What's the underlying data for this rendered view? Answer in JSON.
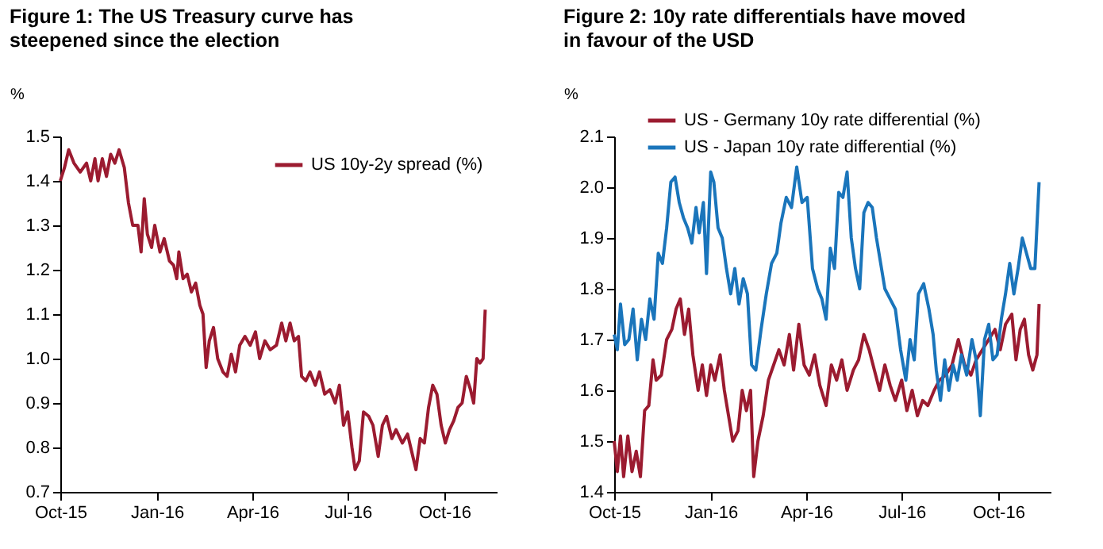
{
  "chart_data": [
    {
      "type": "line",
      "title": "Figure 1: The US Treasury curve has steepened since the election",
      "ylabel": "%",
      "legend": "top right",
      "xlim": [
        "2015-10-01",
        "2016-11-20"
      ],
      "ylim": [
        0.7,
        1.5
      ],
      "xticks": [
        {
          "value": "2015-10-01",
          "label": "Oct-15"
        },
        {
          "value": "2016-01-01",
          "label": "Jan-16"
        },
        {
          "value": "2016-04-01",
          "label": "Apr-16"
        },
        {
          "value": "2016-07-01",
          "label": "Jul-16"
        },
        {
          "value": "2016-10-01",
          "label": "Oct-16"
        }
      ],
      "yticks": [
        {
          "value": 0.7,
          "label": "0.7"
        },
        {
          "value": 0.8,
          "label": "0.8"
        },
        {
          "value": 0.9,
          "label": "0.9"
        },
        {
          "value": 1.0,
          "label": "1.0"
        },
        {
          "value": 1.1,
          "label": "1.1"
        },
        {
          "value": 1.2,
          "label": "1.2"
        },
        {
          "value": 1.3,
          "label": "1.3"
        },
        {
          "value": 1.4,
          "label": "1.4"
        },
        {
          "value": 1.5,
          "label": "1.5"
        }
      ],
      "series": [
        {
          "name": "US 10y-2y spread (%)",
          "color": "#9b1b30",
          "x": [
            "2015-10-01",
            "2015-10-05",
            "2015-10-09",
            "2015-10-14",
            "2015-10-20",
            "2015-10-26",
            "2015-10-30",
            "2015-11-03",
            "2015-11-06",
            "2015-11-10",
            "2015-11-14",
            "2015-11-18",
            "2015-11-22",
            "2015-11-26",
            "2015-12-01",
            "2015-12-05",
            "2015-12-09",
            "2015-12-14",
            "2015-12-17",
            "2015-12-20",
            "2015-12-23",
            "2015-12-27",
            "2015-12-30",
            "2016-01-04",
            "2016-01-08",
            "2016-01-13",
            "2016-01-17",
            "2016-01-20",
            "2016-01-22",
            "2016-01-26",
            "2016-01-30",
            "2016-02-03",
            "2016-02-07",
            "2016-02-11",
            "2016-02-14",
            "2016-02-17",
            "2016-02-20",
            "2016-02-24",
            "2016-02-28",
            "2016-03-04",
            "2016-03-08",
            "2016-03-12",
            "2016-03-16",
            "2016-03-20",
            "2016-03-25",
            "2016-03-30",
            "2016-04-04",
            "2016-04-08",
            "2016-04-13",
            "2016-04-18",
            "2016-04-24",
            "2016-04-29",
            "2016-05-03",
            "2016-05-07",
            "2016-05-11",
            "2016-05-15",
            "2016-05-18",
            "2016-05-22",
            "2016-05-26",
            "2016-05-31",
            "2016-06-04",
            "2016-06-09",
            "2016-06-14",
            "2016-06-19",
            "2016-06-23",
            "2016-06-27",
            "2016-07-01",
            "2016-07-05",
            "2016-07-08",
            "2016-07-12",
            "2016-07-16",
            "2016-07-21",
            "2016-07-25",
            "2016-07-30",
            "2016-08-03",
            "2016-08-07",
            "2016-08-12",
            "2016-08-16",
            "2016-08-22",
            "2016-08-27",
            "2016-09-01",
            "2016-09-04",
            "2016-09-08",
            "2016-09-12",
            "2016-09-16",
            "2016-09-20",
            "2016-09-24",
            "2016-09-28",
            "2016-10-02",
            "2016-10-06",
            "2016-10-10",
            "2016-10-14",
            "2016-10-18",
            "2016-10-22",
            "2016-10-26",
            "2016-10-29",
            "2016-11-01",
            "2016-11-04",
            "2016-11-07",
            "2016-11-09"
          ],
          "values": [
            1.4,
            1.43,
            1.47,
            1.44,
            1.42,
            1.44,
            1.4,
            1.45,
            1.4,
            1.45,
            1.41,
            1.46,
            1.44,
            1.47,
            1.43,
            1.35,
            1.3,
            1.3,
            1.24,
            1.36,
            1.28,
            1.25,
            1.3,
            1.24,
            1.27,
            1.22,
            1.21,
            1.18,
            1.24,
            1.18,
            1.19,
            1.15,
            1.17,
            1.12,
            1.1,
            0.98,
            1.04,
            1.07,
            1.0,
            0.97,
            0.96,
            1.01,
            0.97,
            1.03,
            1.05,
            1.03,
            1.06,
            1.0,
            1.04,
            1.02,
            1.03,
            1.08,
            1.04,
            1.08,
            1.04,
            1.05,
            0.96,
            0.95,
            0.97,
            0.94,
            0.97,
            0.92,
            0.93,
            0.9,
            0.94,
            0.85,
            0.88,
            0.8,
            0.75,
            0.77,
            0.88,
            0.87,
            0.85,
            0.78,
            0.85,
            0.87,
            0.82,
            0.84,
            0.81,
            0.83,
            0.78,
            0.75,
            0.82,
            0.81,
            0.89,
            0.94,
            0.92,
            0.85,
            0.81,
            0.84,
            0.86,
            0.89,
            0.9,
            0.96,
            0.93,
            0.9,
            1.0,
            0.99,
            1.0,
            1.11
          ]
        }
      ]
    },
    {
      "type": "line",
      "title": "Figure 2: 10y rate differentials have moved in favour of the USD",
      "ylabel": "%",
      "legend": "top",
      "xlim": [
        "2015-10-01",
        "2016-11-20"
      ],
      "ylim": [
        1.4,
        2.1
      ],
      "xticks": [
        {
          "value": "2015-10-01",
          "label": "Oct-15"
        },
        {
          "value": "2016-01-01",
          "label": "Jan-16"
        },
        {
          "value": "2016-04-01",
          "label": "Apr-16"
        },
        {
          "value": "2016-07-01",
          "label": "Jul-16"
        },
        {
          "value": "2016-10-01",
          "label": "Oct-16"
        }
      ],
      "yticks": [
        {
          "value": 1.4,
          "label": "1.4"
        },
        {
          "value": 1.5,
          "label": "1.5"
        },
        {
          "value": 1.6,
          "label": "1.6"
        },
        {
          "value": 1.7,
          "label": "1.7"
        },
        {
          "value": 1.8,
          "label": "1.8"
        },
        {
          "value": 1.9,
          "label": "1.9"
        },
        {
          "value": 2.0,
          "label": "2.0"
        },
        {
          "value": 2.1,
          "label": "2.1"
        }
      ],
      "series": [
        {
          "name": "US - Germany 10y rate differential (%)",
          "color": "#9b1b30",
          "x": [
            "2015-10-01",
            "2015-10-04",
            "2015-10-07",
            "2015-10-10",
            "2015-10-14",
            "2015-10-18",
            "2015-10-22",
            "2015-10-26",
            "2015-10-30",
            "2015-11-03",
            "2015-11-07",
            "2015-11-10",
            "2015-11-15",
            "2015-11-20",
            "2015-11-25",
            "2015-11-29",
            "2015-12-03",
            "2015-12-07",
            "2015-12-11",
            "2015-12-15",
            "2015-12-20",
            "2015-12-24",
            "2015-12-28",
            "2016-01-01",
            "2016-01-05",
            "2016-01-10",
            "2016-01-14",
            "2016-01-18",
            "2016-01-22",
            "2016-01-27",
            "2016-01-31",
            "2016-02-04",
            "2016-02-08",
            "2016-02-11",
            "2016-02-15",
            "2016-02-20",
            "2016-02-25",
            "2016-03-01",
            "2016-03-06",
            "2016-03-11",
            "2016-03-16",
            "2016-03-20",
            "2016-03-25",
            "2016-03-30",
            "2016-04-04",
            "2016-04-09",
            "2016-04-14",
            "2016-04-20",
            "2016-04-25",
            "2016-04-30",
            "2016-05-05",
            "2016-05-10",
            "2016-05-16",
            "2016-05-21",
            "2016-05-26",
            "2016-05-31",
            "2016-06-05",
            "2016-06-10",
            "2016-06-15",
            "2016-06-20",
            "2016-06-25",
            "2016-07-01",
            "2016-07-06",
            "2016-07-11",
            "2016-07-16",
            "2016-07-21",
            "2016-07-26",
            "2016-08-01",
            "2016-08-06",
            "2016-08-12",
            "2016-08-18",
            "2016-08-24",
            "2016-08-30",
            "2016-09-05",
            "2016-09-10",
            "2016-09-16",
            "2016-09-22",
            "2016-09-28",
            "2016-10-03",
            "2016-10-08",
            "2016-10-14",
            "2016-10-18",
            "2016-10-22",
            "2016-10-26",
            "2016-10-30",
            "2016-11-03",
            "2016-11-07",
            "2016-11-09"
          ],
          "values": [
            1.5,
            1.44,
            1.51,
            1.43,
            1.51,
            1.44,
            1.48,
            1.43,
            1.56,
            1.57,
            1.66,
            1.62,
            1.63,
            1.7,
            1.72,
            1.76,
            1.78,
            1.71,
            1.76,
            1.67,
            1.6,
            1.65,
            1.59,
            1.65,
            1.62,
            1.67,
            1.6,
            1.55,
            1.5,
            1.52,
            1.6,
            1.56,
            1.6,
            1.43,
            1.5,
            1.55,
            1.62,
            1.65,
            1.68,
            1.65,
            1.71,
            1.64,
            1.73,
            1.65,
            1.63,
            1.67,
            1.61,
            1.57,
            1.65,
            1.62,
            1.66,
            1.6,
            1.64,
            1.66,
            1.71,
            1.68,
            1.64,
            1.6,
            1.65,
            1.61,
            1.58,
            1.62,
            1.56,
            1.6,
            1.55,
            1.58,
            1.57,
            1.6,
            1.62,
            1.63,
            1.65,
            1.7,
            1.65,
            1.63,
            1.66,
            1.68,
            1.7,
            1.72,
            1.68,
            1.73,
            1.75,
            1.66,
            1.72,
            1.74,
            1.67,
            1.64,
            1.67,
            1.77
          ]
        },
        {
          "name": "US - Japan 10y rate differential (%)",
          "color": "#1a75bb",
          "x": [
            "2015-10-01",
            "2015-10-04",
            "2015-10-07",
            "2015-10-11",
            "2015-10-15",
            "2015-10-19",
            "2015-10-23",
            "2015-10-27",
            "2015-10-31",
            "2015-11-04",
            "2015-11-08",
            "2015-11-12",
            "2015-11-16",
            "2015-11-20",
            "2015-11-24",
            "2015-11-28",
            "2015-12-02",
            "2015-12-06",
            "2015-12-10",
            "2015-12-14",
            "2015-12-18",
            "2015-12-21",
            "2015-12-25",
            "2015-12-28",
            "2016-01-01",
            "2016-01-04",
            "2016-01-08",
            "2016-01-12",
            "2016-01-16",
            "2016-01-20",
            "2016-01-24",
            "2016-01-28",
            "2016-02-01",
            "2016-02-05",
            "2016-02-09",
            "2016-02-13",
            "2016-02-18",
            "2016-02-23",
            "2016-02-28",
            "2016-03-04",
            "2016-03-08",
            "2016-03-13",
            "2016-03-18",
            "2016-03-23",
            "2016-03-28",
            "2016-04-02",
            "2016-04-07",
            "2016-04-12",
            "2016-04-16",
            "2016-04-20",
            "2016-04-24",
            "2016-04-28",
            "2016-05-02",
            "2016-05-06",
            "2016-05-10",
            "2016-05-14",
            "2016-05-18",
            "2016-05-22",
            "2016-05-26",
            "2016-05-30",
            "2016-06-03",
            "2016-06-07",
            "2016-06-11",
            "2016-06-15",
            "2016-06-20",
            "2016-06-25",
            "2016-06-30",
            "2016-07-05",
            "2016-07-09",
            "2016-07-13",
            "2016-07-17",
            "2016-07-22",
            "2016-07-27",
            "2016-07-31",
            "2016-08-03",
            "2016-08-07",
            "2016-08-11",
            "2016-08-15",
            "2016-08-19",
            "2016-08-23",
            "2016-08-27",
            "2016-09-01",
            "2016-09-06",
            "2016-09-10",
            "2016-09-14",
            "2016-09-18",
            "2016-09-22",
            "2016-09-26",
            "2016-09-30",
            "2016-10-04",
            "2016-10-08",
            "2016-10-12",
            "2016-10-16",
            "2016-10-20",
            "2016-10-24",
            "2016-10-28",
            "2016-11-01",
            "2016-11-05",
            "2016-11-09"
          ],
          "values": [
            1.71,
            1.68,
            1.77,
            1.69,
            1.7,
            1.76,
            1.66,
            1.74,
            1.7,
            1.78,
            1.74,
            1.87,
            1.85,
            1.92,
            2.01,
            2.02,
            1.97,
            1.94,
            1.92,
            1.89,
            1.96,
            1.91,
            1.97,
            1.83,
            2.03,
            2.01,
            1.92,
            1.9,
            1.84,
            1.79,
            1.84,
            1.77,
            1.82,
            1.79,
            1.65,
            1.64,
            1.72,
            1.79,
            1.85,
            1.87,
            1.93,
            1.98,
            1.96,
            2.04,
            1.97,
            1.98,
            1.84,
            1.8,
            1.78,
            1.74,
            1.88,
            1.84,
            1.99,
            1.98,
            2.03,
            1.9,
            1.84,
            1.8,
            1.95,
            1.97,
            1.96,
            1.9,
            1.85,
            1.8,
            1.78,
            1.76,
            1.68,
            1.62,
            1.7,
            1.66,
            1.79,
            1.81,
            1.76,
            1.71,
            1.64,
            1.58,
            1.66,
            1.6,
            1.65,
            1.62,
            1.67,
            1.63,
            1.7,
            1.66,
            1.55,
            1.7,
            1.73,
            1.66,
            1.67,
            1.74,
            1.79,
            1.85,
            1.79,
            1.84,
            1.9,
            1.87,
            1.84,
            1.84,
            2.01
          ]
        }
      ]
    }
  ]
}
